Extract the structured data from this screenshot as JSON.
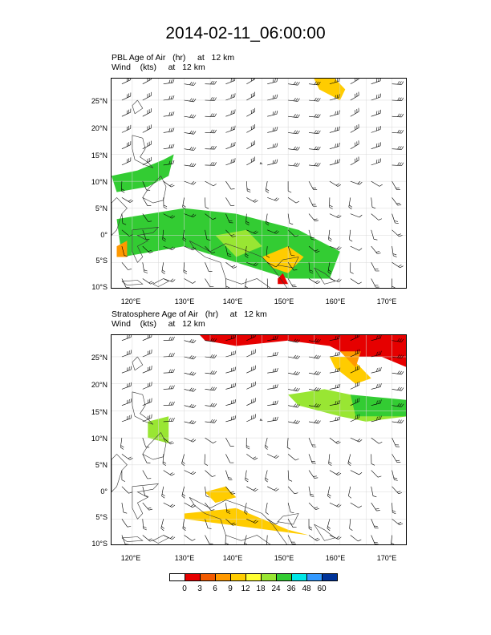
{
  "figure": {
    "title": "2014-02-11_06:00:00"
  },
  "panels": [
    {
      "title_line1": "PBL Age of Air   (hr)     at   12 km",
      "title_line2": "Wind    (kts)     at   12 km"
    },
    {
      "title_line1": "Stratosphere Age of Air   (hr)     at   12 km",
      "title_line2": "Wind    (kts)     at   12 km"
    }
  ],
  "axes": {
    "lat_ticks": [
      "25°N",
      "20°N",
      "15°N",
      "10°N",
      "5°N",
      "0°",
      "5°S",
      "10°S"
    ],
    "lon_ticks": [
      "120°E",
      "130°E",
      "140°E",
      "150°E",
      "160°E",
      "170°E"
    ]
  },
  "colorbar": {
    "colors": [
      "#ffffff",
      "#e60000",
      "#f25a00",
      "#ff9900",
      "#ffcc00",
      "#ffff33",
      "#99e633",
      "#33cc33",
      "#00e6e6",
      "#3399ff",
      "#003399"
    ],
    "labels": [
      "0",
      "3",
      "6",
      "9",
      "12",
      "18",
      "24",
      "36",
      "48",
      "60"
    ]
  },
  "chart_data": {
    "type": "heatmap",
    "lon_range": [
      116,
      173
    ],
    "lat_range": [
      -10,
      29
    ],
    "panels": [
      {
        "name": "PBL",
        "regions": [
          {
            "color": "#ffcc00",
            "points": [
              [
                155,
                29
              ],
              [
                159,
                29
              ],
              [
                161,
                27
              ],
              [
                160,
                25
              ],
              [
                158,
                26
              ],
              [
                156,
                27
              ]
            ]
          },
          {
            "color": "#33cc33",
            "points": [
              [
                116,
                11
              ],
              [
                121,
                12
              ],
              [
                126,
                14
              ],
              [
                128,
                15
              ],
              [
                127,
                11
              ],
              [
                123,
                9
              ],
              [
                117,
                8
              ]
            ]
          },
          {
            "color": "#33cc33",
            "points": [
              [
                117,
                3
              ],
              [
                130,
                5
              ],
              [
                140,
                4
              ],
              [
                152,
                1
              ],
              [
                160,
                -3
              ],
              [
                158,
                -8
              ],
              [
                150,
                -8
              ],
              [
                140,
                -5
              ],
              [
                130,
                -2
              ],
              [
                118,
                -4
              ]
            ]
          },
          {
            "color": "#99e633",
            "points": [
              [
                136,
                0
              ],
              [
                142,
                1
              ],
              [
                145,
                -2
              ],
              [
                140,
                -4
              ]
            ]
          },
          {
            "color": "#ffcc00",
            "points": [
              [
                145,
                -4
              ],
              [
                150,
                -2
              ],
              [
                153,
                -4
              ],
              [
                150,
                -7
              ],
              [
                147,
                -6
              ]
            ]
          },
          {
            "color": "#ff9900",
            "points": [
              [
                117,
                -2
              ],
              [
                119,
                -1
              ],
              [
                119,
                -4
              ],
              [
                117,
                -4
              ]
            ]
          },
          {
            "color": "#e60000",
            "points": [
              [
                148,
                -8
              ],
              [
                149,
                -7
              ],
              [
                150,
                -9
              ],
              [
                148,
                -9
              ]
            ]
          }
        ]
      },
      {
        "name": "Stratosphere",
        "regions": [
          {
            "color": "#e60000",
            "points": [
              [
                133,
                29
              ],
              [
                173,
                29
              ],
              [
                173,
                23
              ],
              [
                168,
                25
              ],
              [
                162,
                25
              ],
              [
                158,
                27
              ],
              [
                150,
                28
              ],
              [
                140,
                27
              ],
              [
                134,
                28
              ]
            ]
          },
          {
            "color": "#ffcc00",
            "points": [
              [
                158,
                25
              ],
              [
                162,
                25
              ],
              [
                166,
                21
              ],
              [
                163,
                20
              ],
              [
                159,
                23
              ]
            ]
          },
          {
            "color": "#ff9900",
            "points": [
              [
                160,
                26
              ],
              [
                164,
                26
              ],
              [
                163,
                23
              ]
            ]
          },
          {
            "color": "#99e633",
            "points": [
              [
                150,
                18
              ],
              [
                157,
                19
              ],
              [
                162,
                18
              ],
              [
                170,
                17
              ],
              [
                173,
                16
              ],
              [
                173,
                14
              ],
              [
                165,
                13
              ],
              [
                160,
                14
              ],
              [
                152,
                16
              ]
            ]
          },
          {
            "color": "#33cc33",
            "points": [
              [
                162,
                18
              ],
              [
                173,
                17
              ],
              [
                173,
                14
              ],
              [
                163,
                14
              ]
            ]
          },
          {
            "color": "#99e633",
            "points": [
              [
                123,
                13
              ],
              [
                127,
                14
              ],
              [
                127,
                9
              ],
              [
                123,
                10
              ]
            ]
          },
          {
            "color": "#ffcc00",
            "points": [
              [
                134,
                0
              ],
              [
                138,
                1
              ],
              [
                140,
                -1
              ],
              [
                136,
                -2
              ]
            ]
          },
          {
            "color": "#ffcc00",
            "points": [
              [
                130,
                -4
              ],
              [
                140,
                -3
              ],
              [
                150,
                -7
              ],
              [
                154,
                -8
              ],
              [
                146,
                -7
              ],
              [
                138,
                -6
              ],
              [
                130,
                -5
              ]
            ]
          }
        ]
      }
    ]
  }
}
